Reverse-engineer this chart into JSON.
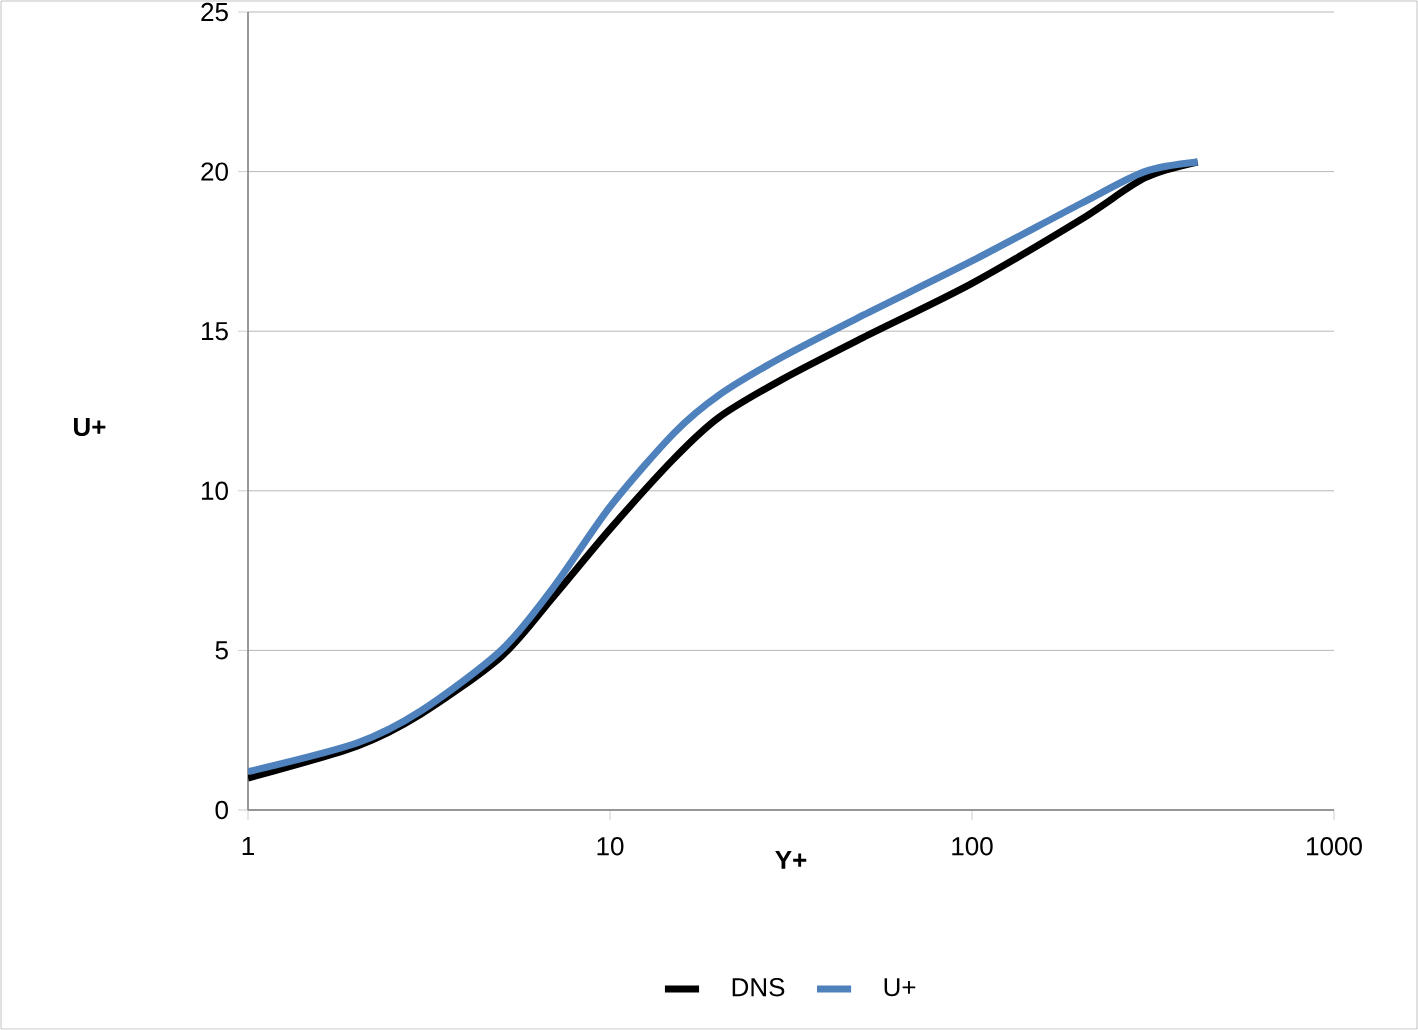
{
  "chart_data": {
    "type": "line",
    "xlabel": "Y+",
    "ylabel": "U+",
    "x": [
      1,
      2,
      3,
      5,
      7,
      10,
      15,
      20,
      30,
      50,
      100,
      200,
      300,
      420
    ],
    "series": [
      {
        "name": "DNS",
        "color": "#000000",
        "values": [
          1.0,
          2.0,
          3.0,
          4.8,
          6.7,
          8.8,
          11.0,
          12.3,
          13.5,
          14.8,
          16.5,
          18.5,
          19.8,
          20.3
        ]
      },
      {
        "name": "U+",
        "color": "#4f81bd",
        "values": [
          1.2,
          2.1,
          3.1,
          5.0,
          7.0,
          9.5,
          11.8,
          13.0,
          14.2,
          15.5,
          17.2,
          19.0,
          20.0,
          20.3
        ]
      }
    ],
    "xlim": [
      1,
      1000
    ],
    "xticks": [
      1,
      10,
      100,
      1000
    ],
    "ylim": [
      0,
      25
    ],
    "yticks": [
      0,
      5,
      10,
      15,
      20,
      25
    ],
    "log": "x",
    "grid": "y",
    "legend": "bottom",
    "marker": "none",
    "line_style": "solid"
  }
}
